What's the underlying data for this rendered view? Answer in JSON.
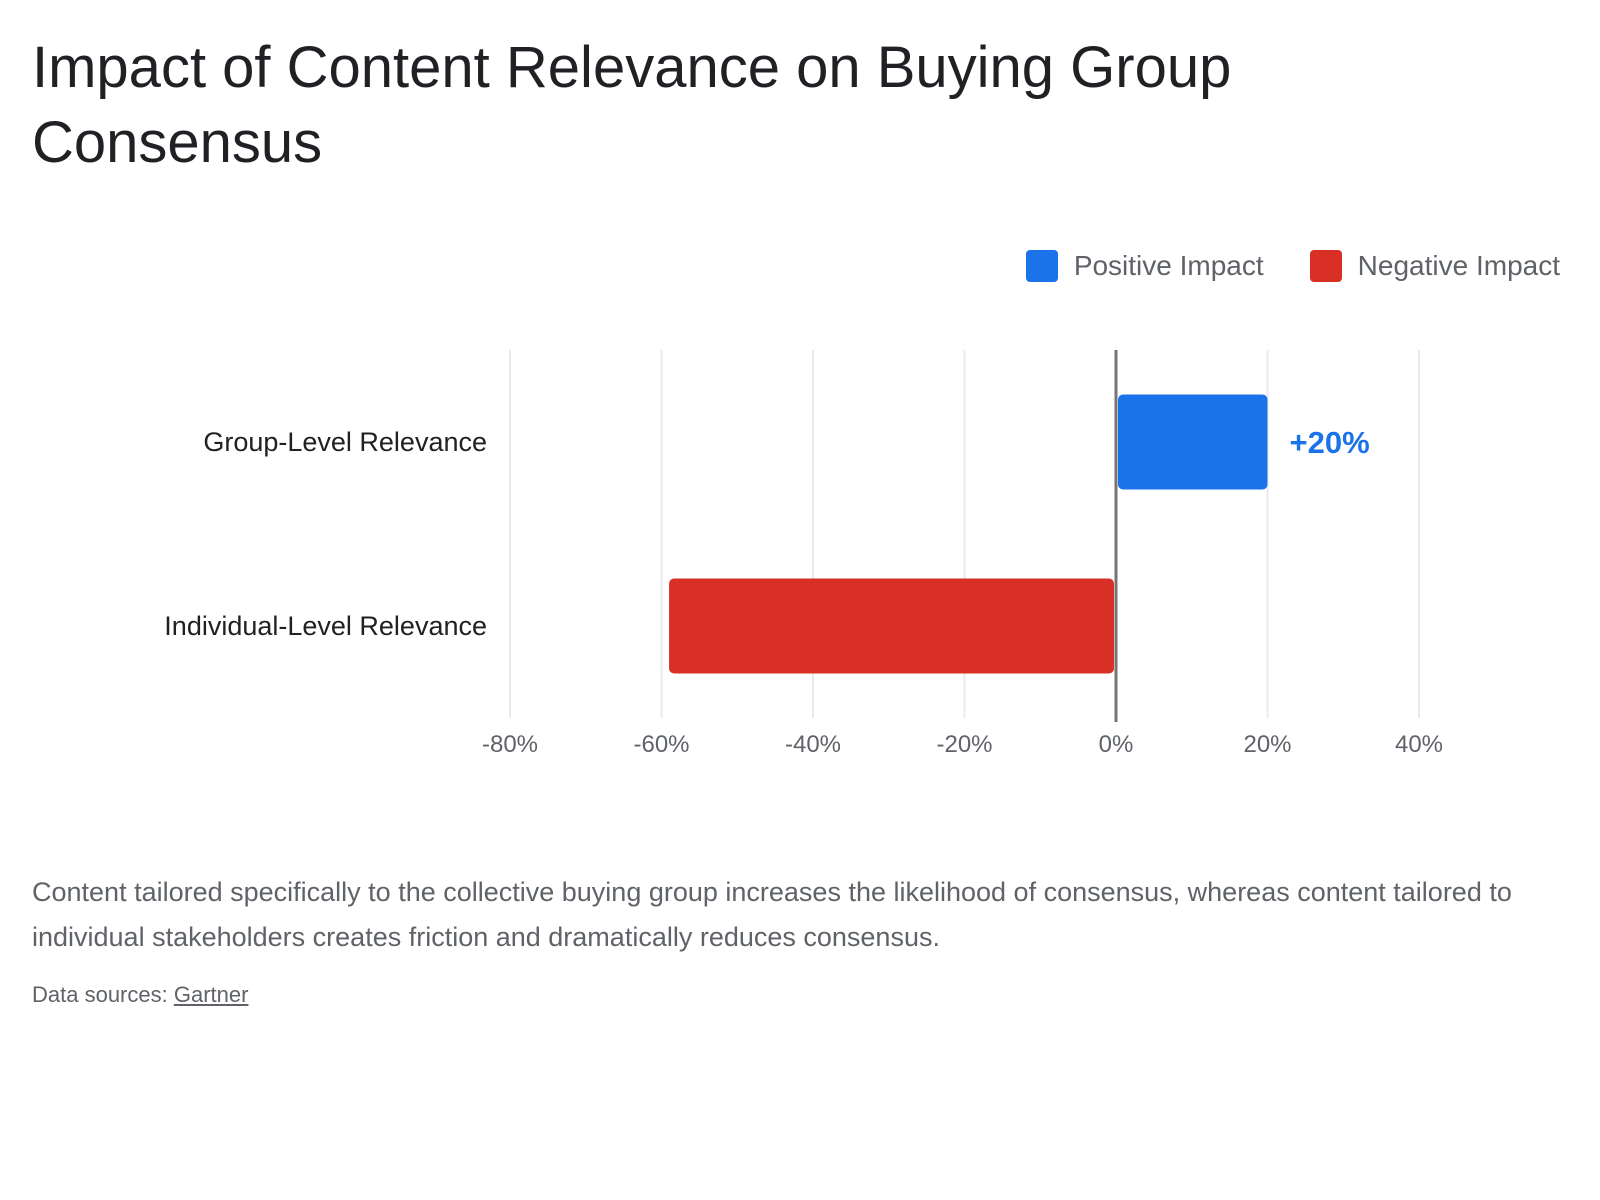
{
  "chart_data": {
    "type": "bar",
    "orientation": "horizontal",
    "title": "Impact of Content Relevance on Buying Group Consensus",
    "categories": [
      "Group-Level Relevance",
      "Individual-Level Relevance"
    ],
    "series": [
      {
        "name": "Positive Impact",
        "color": "#1a73e8",
        "values": [
          20,
          null
        ]
      },
      {
        "name": "Negative Impact",
        "color": "#d93025",
        "values": [
          null,
          -59
        ]
      }
    ],
    "values": [
      20,
      -59
    ],
    "data_labels": [
      "+20%",
      ""
    ],
    "xlim": [
      -80,
      40
    ],
    "x_ticks": [
      -80,
      -60,
      -40,
      -20,
      0,
      20,
      40
    ],
    "x_tick_labels": [
      "-80%",
      "-60%",
      "-40%",
      "-20%",
      "0%",
      "20%",
      "40%"
    ],
    "xlabel": "",
    "ylabel": "",
    "grid": true,
    "legend_position": "top-right"
  },
  "legend": {
    "positive_label": "Positive Impact",
    "negative_label": "Negative Impact",
    "positive_color": "#1a73e8",
    "negative_color": "#d93025"
  },
  "note": "Content tailored specifically to the collective buying group increases the likelihood of consensus, whereas content tailored to individual stakeholders creates friction and dramatically reduces consensus.",
  "source": {
    "prefix": "Data sources: ",
    "link_label": "Gartner"
  }
}
